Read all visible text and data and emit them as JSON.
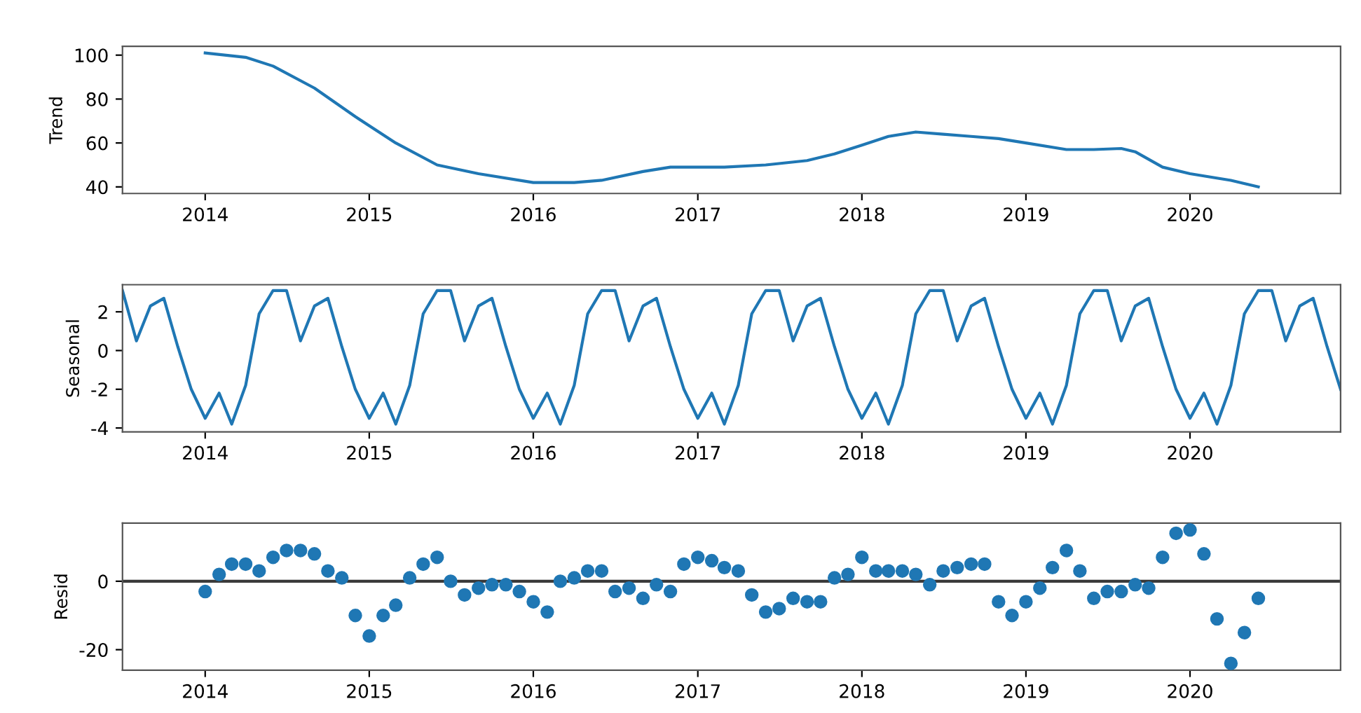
{
  "chart_data": [
    {
      "type": "line",
      "ylabel": "Trend",
      "xlim": [
        "2013-07",
        "2020-12"
      ],
      "xticks": [
        "2014",
        "2015",
        "2016",
        "2017",
        "2018",
        "2019",
        "2020"
      ],
      "ylim": [
        37,
        104
      ],
      "yticks": [
        40,
        60,
        80,
        100
      ],
      "grid": false,
      "marker": "none",
      "line_style": "solid",
      "series": [
        {
          "color": "#1f77b4",
          "x": [
            "2014-01",
            "2014-04",
            "2014-06",
            "2014-09",
            "2014-12",
            "2015-03",
            "2015-06",
            "2015-09",
            "2016-01",
            "2016-04",
            "2016-06",
            "2016-09",
            "2016-11",
            "2017-03",
            "2017-06",
            "2017-09",
            "2017-11",
            "2018-01",
            "2018-03",
            "2018-05",
            "2018-07",
            "2018-09",
            "2018-11",
            "2019-01",
            "2019-04",
            "2019-06",
            "2019-08",
            "2019-09",
            "2019-11",
            "2020-01",
            "2020-04",
            "2020-06"
          ],
          "values": [
            101,
            99,
            95,
            85,
            72,
            60,
            50,
            46,
            42,
            42,
            43,
            47,
            49,
            49,
            50,
            52,
            55,
            59,
            63,
            65,
            64,
            63,
            62,
            60,
            57,
            57,
            57.5,
            56,
            49,
            46,
            43,
            40
          ]
        }
      ]
    },
    {
      "type": "line",
      "ylabel": "Seasonal",
      "xlim": [
        "2013-07",
        "2020-12"
      ],
      "xticks": [
        "2014",
        "2015",
        "2016",
        "2017",
        "2018",
        "2019",
        "2020"
      ],
      "ylim": [
        -4.2,
        3.4
      ],
      "yticks": [
        -4,
        -2,
        0,
        2
      ],
      "grid": false,
      "marker": "none",
      "line_style": "solid",
      "series": [
        {
          "color": "#1f77b4",
          "x": [
            "2013-07",
            "2013-08",
            "2013-09",
            "2013-10",
            "2013-11",
            "2013-12",
            "2014-01",
            "2014-02",
            "2014-03",
            "2014-04",
            "2014-05",
            "2014-06",
            "2014-07",
            "2014-08",
            "2014-09",
            "2014-10",
            "2014-11",
            "2014-12",
            "2015-01",
            "2015-02",
            "2015-03",
            "2015-04",
            "2015-05",
            "2015-06",
            "2015-07",
            "2015-08",
            "2015-09",
            "2015-10",
            "2015-11",
            "2015-12",
            "2016-01",
            "2016-02",
            "2016-03",
            "2016-04",
            "2016-05",
            "2016-06",
            "2016-07",
            "2016-08",
            "2016-09",
            "2016-10",
            "2016-11",
            "2016-12",
            "2017-01",
            "2017-02",
            "2017-03",
            "2017-04",
            "2017-05",
            "2017-06",
            "2017-07",
            "2017-08",
            "2017-09",
            "2017-10",
            "2017-11",
            "2017-12",
            "2018-01",
            "2018-02",
            "2018-03",
            "2018-04",
            "2018-05",
            "2018-06",
            "2018-07",
            "2018-08",
            "2018-09",
            "2018-10",
            "2018-11",
            "2018-12",
            "2019-01",
            "2019-02",
            "2019-03",
            "2019-04",
            "2019-05",
            "2019-06",
            "2019-07",
            "2019-08",
            "2019-09",
            "2019-10",
            "2019-11",
            "2019-12",
            "2020-01",
            "2020-02",
            "2020-03",
            "2020-04",
            "2020-05",
            "2020-06",
            "2020-07",
            "2020-08",
            "2020-09",
            "2020-10",
            "2020-11",
            "2020-12"
          ],
          "values": [
            3.1,
            0.5,
            2.3,
            2.7,
            0.2,
            -2.0,
            -3.5,
            -2.2,
            -3.8,
            -1.8,
            1.9,
            3.1,
            3.1,
            0.5,
            2.3,
            2.7,
            0.2,
            -2.0,
            -3.5,
            -2.2,
            -3.8,
            -1.8,
            1.9,
            3.1,
            3.1,
            0.5,
            2.3,
            2.7,
            0.2,
            -2.0,
            -3.5,
            -2.2,
            -3.8,
            -1.8,
            1.9,
            3.1,
            3.1,
            0.5,
            2.3,
            2.7,
            0.2,
            -2.0,
            -3.5,
            -2.2,
            -3.8,
            -1.8,
            1.9,
            3.1,
            3.1,
            0.5,
            2.3,
            2.7,
            0.2,
            -2.0,
            -3.5,
            -2.2,
            -3.8,
            -1.8,
            1.9,
            3.1,
            3.1,
            0.5,
            2.3,
            2.7,
            0.2,
            -2.0,
            -3.5,
            -2.2,
            -3.8,
            -1.8,
            1.9,
            3.1,
            3.1,
            0.5,
            2.3,
            2.7,
            0.2,
            -2.0,
            -3.5,
            -2.2,
            -3.8,
            -1.8,
            1.9,
            3.1,
            3.1,
            0.5,
            2.3,
            2.7,
            0.2,
            -2.0
          ]
        }
      ]
    },
    {
      "type": "scatter",
      "ylabel": "Resid",
      "xlim": [
        "2013-07",
        "2020-12"
      ],
      "xticks": [
        "2014",
        "2015",
        "2016",
        "2017",
        "2018",
        "2019",
        "2020"
      ],
      "ylim": [
        -26,
        17
      ],
      "yticks": [
        -20,
        0
      ],
      "grid": false,
      "marker": "circle",
      "ref_lines": [
        {
          "axis": "y",
          "value": 0,
          "color": "#3a3a3a",
          "line_style": "solid"
        }
      ],
      "series": [
        {
          "color": "#1f77b4",
          "x": [
            "2014-01",
            "2014-02",
            "2014-03",
            "2014-04",
            "2014-05",
            "2014-06",
            "2014-07",
            "2014-08",
            "2014-09",
            "2014-10",
            "2014-11",
            "2014-12",
            "2015-01",
            "2015-02",
            "2015-03",
            "2015-04",
            "2015-05",
            "2015-06",
            "2015-07",
            "2015-08",
            "2015-09",
            "2015-10",
            "2015-11",
            "2015-12",
            "2016-01",
            "2016-02",
            "2016-03",
            "2016-04",
            "2016-05",
            "2016-06",
            "2016-07",
            "2016-08",
            "2016-09",
            "2016-10",
            "2016-11",
            "2016-12",
            "2017-01",
            "2017-02",
            "2017-03",
            "2017-04",
            "2017-05",
            "2017-06",
            "2017-07",
            "2017-08",
            "2017-09",
            "2017-10",
            "2017-11",
            "2017-12",
            "2018-01",
            "2018-02",
            "2018-03",
            "2018-04",
            "2018-05",
            "2018-06",
            "2018-07",
            "2018-08",
            "2018-09",
            "2018-10",
            "2018-11",
            "2018-12",
            "2019-01",
            "2019-02",
            "2019-03",
            "2019-04",
            "2019-05",
            "2019-06",
            "2019-07",
            "2019-08",
            "2019-09",
            "2019-10",
            "2019-11",
            "2019-12",
            "2020-01",
            "2020-02",
            "2020-03",
            "2020-04",
            "2020-05",
            "2020-06"
          ],
          "values": [
            -3,
            2,
            5,
            5,
            3,
            7,
            9,
            9,
            8,
            3,
            1,
            -10,
            -16,
            -10,
            -7,
            1,
            5,
            7,
            0,
            -4,
            -2,
            -1,
            -1,
            -3,
            -6,
            -9,
            0,
            1,
            3,
            3,
            -3,
            -2,
            -5,
            -1,
            -3,
            5,
            7,
            6,
            4,
            3,
            -4,
            -9,
            -8,
            -5,
            -6,
            -6,
            1,
            2,
            7,
            3,
            3,
            3,
            2,
            -1,
            3,
            4,
            5,
            5,
            -6,
            -10,
            -6,
            -2,
            4,
            9,
            3,
            -5,
            -3,
            -3,
            -1,
            -2,
            7,
            14,
            15,
            8,
            -11,
            -24,
            -15,
            -5
          ]
        }
      ]
    }
  ]
}
